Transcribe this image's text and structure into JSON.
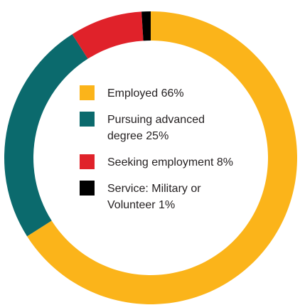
{
  "chart_data": {
    "type": "pie",
    "variant": "donut",
    "categories": [
      "Employed",
      "Pursuing advanced degree",
      "Seeking employment",
      "Service: Military or Volunteer"
    ],
    "values": [
      66,
      25,
      8,
      1
    ],
    "colors": [
      "#fbb41a",
      "#0b6a6d",
      "#e0222a",
      "#000000"
    ],
    "legend": [
      {
        "label": "Employed 66%",
        "color": "#fbb41a"
      },
      {
        "label": "Pursuing advanced degree 25%",
        "color": "#0b6a6d"
      },
      {
        "label": "Seeking employment 8%",
        "color": "#e0222a"
      },
      {
        "label": "Service: Military or Volunteer 1%",
        "color": "#000000"
      }
    ],
    "legend_position": "center",
    "start": "top",
    "direction": "clockwise"
  }
}
